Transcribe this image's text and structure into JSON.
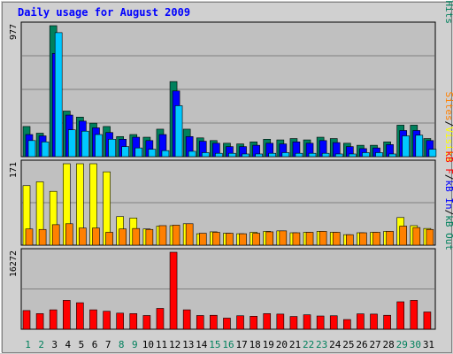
{
  "chart_data": {
    "type": "bar",
    "title": "Daily usage for August 2009",
    "x": {
      "days": [
        "1",
        "2",
        "3",
        "4",
        "5",
        "6",
        "7",
        "8",
        "9",
        "10",
        "11",
        "12",
        "13",
        "14",
        "15",
        "16",
        "17",
        "18",
        "19",
        "20",
        "21",
        "22",
        "23",
        "24",
        "25",
        "26",
        "27",
        "28",
        "29",
        "30",
        "31"
      ],
      "weekend_days": [
        "1",
        "2",
        "8",
        "9",
        "15",
        "16",
        "22",
        "23",
        "29",
        "30"
      ]
    },
    "colors": {
      "hits": "#00805C",
      "files": "#0000FF",
      "pages": "#00C8FF",
      "visits": "#FFFF00",
      "sites": "#FF8000",
      "kbin": "#0000FF",
      "kbout": "#00805C",
      "kbf": "#FF0000",
      "weekday_label": "#000000",
      "weekend_label": "#00805C",
      "panel_bg": "#C0C0C0",
      "grid": "#808080",
      "title": "#0000FF"
    },
    "panels": [
      {
        "name": "hits-files-pages",
        "ymax_label": "977",
        "ymax": 977,
        "label_parts": [
          "Pages",
          "/",
          "Files",
          "/",
          "Hits"
        ],
        "label_colors": [
          "#00C8FF",
          "#000000",
          "#0000FF",
          "#000000",
          "#00805C"
        ],
        "series": [
          {
            "name": "Hits",
            "values": [
              225,
              175,
              977,
              340,
              295,
              250,
              225,
              150,
              165,
              145,
              205,
              560,
              205,
              140,
              120,
              100,
              95,
              110,
              130,
              125,
              135,
              125,
              145,
              135,
              100,
              85,
              85,
              110,
              235,
              235,
              135
            ]
          },
          {
            "name": "Files",
            "values": [
              165,
              155,
              770,
              310,
              265,
              215,
              180,
              130,
              145,
              120,
              165,
              490,
              150,
              115,
              100,
              75,
              75,
              85,
              100,
              95,
              110,
              100,
              120,
              105,
              75,
              60,
              65,
              90,
              195,
              195,
              120
            ]
          },
          {
            "name": "Pages",
            "values": [
              120,
              110,
              925,
              200,
              190,
              165,
              130,
              75,
              65,
              55,
              45,
              380,
              40,
              30,
              25,
              25,
              20,
              20,
              25,
              30,
              25,
              25,
              25,
              20,
              20,
              30,
              30,
              20,
              155,
              160,
              55
            ]
          }
        ]
      },
      {
        "name": "visits-sites",
        "ymax_label": "171",
        "ymax": 171,
        "label_parts": [
          "Sites",
          "/",
          "Visits"
        ],
        "label_colors": [
          "#FF8000",
          "#000000",
          "#FFFF00"
        ],
        "series": [
          {
            "name": "Visits",
            "values": [
              125,
              133,
              113,
              171,
              171,
              171,
              154,
              60,
              57,
              34,
              40,
              41,
              45,
              24,
              28,
              25,
              24,
              27,
              29,
              30,
              26,
              27,
              29,
              27,
              22,
              26,
              27,
              29,
              58,
              41,
              35
            ]
          },
          {
            "name": "Sites",
            "values": [
              34,
              33,
              43,
              45,
              36,
              36,
              27,
              34,
              35,
              33,
              41,
              42,
              45,
              25,
              27,
              25,
              24,
              25,
              28,
              30,
              26,
              27,
              29,
              27,
              22,
              26,
              27,
              29,
              40,
              37,
              33
            ]
          }
        ]
      },
      {
        "name": "kbytes",
        "ymax_label": "16272",
        "ymax": 16272,
        "label_parts": [
          "kB F",
          "/",
          "kB In",
          "/",
          "kB Out"
        ],
        "label_colors": [
          "#FF0000",
          "#000000",
          "#0000FF",
          "#000000",
          "#00805C"
        ],
        "series": [
          {
            "name": "kB F",
            "values": [
              3950,
              3300,
              4100,
              6100,
              5600,
              4100,
              3800,
              3400,
              3300,
              2900,
              4400,
              16272,
              4100,
              2900,
              2950,
              2350,
              2850,
              2750,
              3300,
              3200,
              2700,
              3050,
              2800,
              2850,
              2050,
              3250,
              3200,
              2950,
              5800,
              6100,
              3650
            ]
          }
        ]
      }
    ]
  }
}
